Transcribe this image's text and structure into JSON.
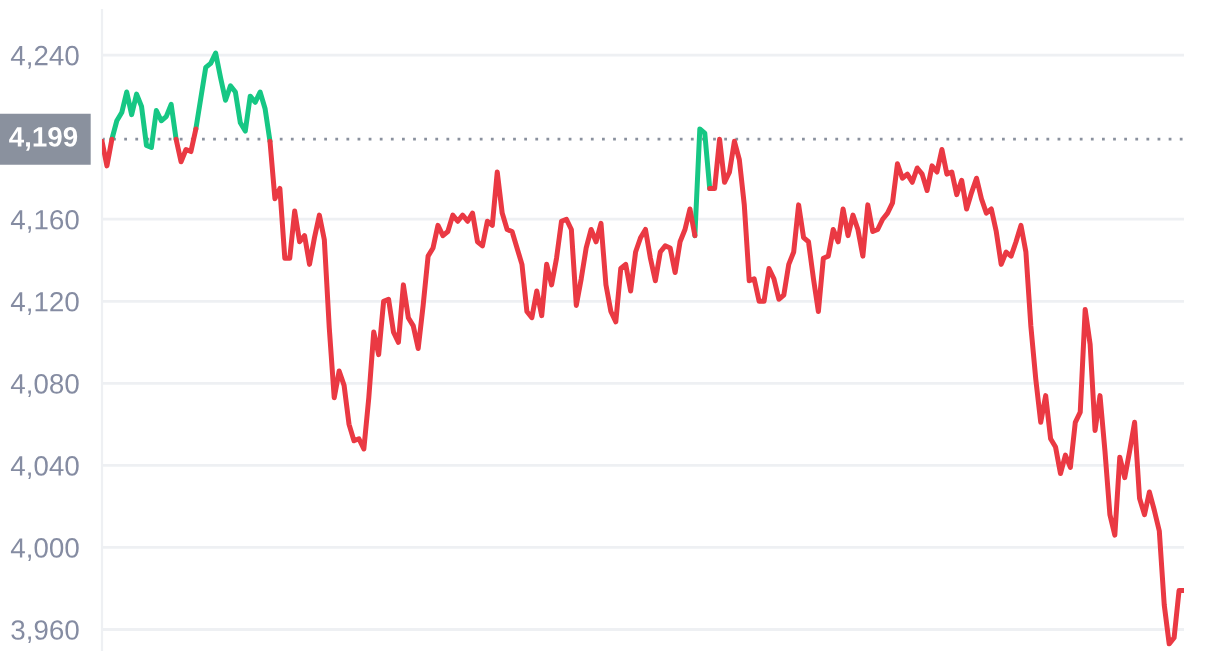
{
  "chart_data": {
    "type": "line",
    "categories": [
      null,
      null,
      null,
      null,
      null,
      null,
      null,
      null,
      null,
      null,
      null,
      null,
      null,
      null,
      null,
      null,
      null,
      null,
      null,
      null,
      null,
      null,
      null,
      null,
      null,
      null,
      null,
      null,
      null,
      null,
      null,
      null,
      null,
      null,
      null,
      null,
      null,
      null,
      null,
      null,
      null,
      null,
      null,
      null,
      null,
      null,
      null,
      null,
      null,
      null,
      null,
      null,
      null,
      null,
      null,
      null,
      null,
      null,
      null,
      null,
      null,
      null,
      null,
      null,
      null,
      null,
      null,
      null,
      null,
      null,
      null,
      null,
      null,
      null,
      null,
      null,
      null,
      null,
      null,
      null,
      null,
      null,
      null,
      null,
      null,
      null,
      null,
      null,
      null,
      null,
      null,
      null,
      null,
      null,
      null,
      null,
      null,
      null,
      null,
      null,
      null,
      null,
      null,
      null,
      null,
      null,
      null,
      null,
      null,
      null,
      null,
      null,
      null,
      null,
      null,
      null,
      null,
      null,
      null,
      null,
      null,
      null,
      null,
      null,
      null,
      null,
      null,
      null,
      null,
      null,
      null,
      null,
      null,
      null,
      null,
      null,
      null,
      null,
      null,
      null,
      null,
      null,
      null,
      null,
      null,
      null,
      null,
      null,
      null,
      null,
      null,
      null,
      null,
      null,
      null,
      null,
      null,
      null,
      null,
      null,
      null,
      null,
      null,
      null,
      null,
      null,
      null,
      null,
      null,
      null,
      null,
      null,
      null,
      null,
      null,
      null,
      null,
      null,
      null,
      null,
      null,
      null,
      null,
      null,
      null,
      null,
      null,
      null,
      null,
      null,
      null,
      null,
      null,
      null,
      null,
      null,
      null,
      null,
      null,
      null,
      null,
      null,
      null,
      null,
      null,
      null,
      null,
      null,
      null,
      null,
      null,
      null,
      null,
      null,
      null,
      null,
      null,
      null,
      null,
      null
    ],
    "series": [
      {
        "color": "#16c784",
        "values": [
          null,
          null,
          4199,
          4208,
          4212,
          4222,
          4211,
          4221,
          4215,
          4196,
          4195,
          4213,
          4208,
          4210,
          4216,
          4199,
          null,
          null,
          null,
          4204,
          4219,
          4234,
          4236,
          4241,
          4229,
          4218,
          4225,
          4222,
          4207,
          4203,
          4220,
          4217,
          4222,
          4214,
          4198,
          null,
          null,
          null,
          null,
          null,
          null,
          null,
          null,
          null,
          null,
          null,
          null,
          null,
          null,
          null,
          null,
          null,
          null,
          null,
          null,
          null,
          null,
          null,
          null,
          null,
          null,
          null,
          null,
          null,
          null,
          null,
          null,
          null,
          null,
          null,
          null,
          null,
          null,
          null,
          null,
          null,
          null,
          null,
          null,
          null,
          null,
          null,
          null,
          null,
          null,
          null,
          null,
          null,
          null,
          null,
          null,
          null,
          null,
          null,
          null,
          null,
          null,
          null,
          null,
          null,
          null,
          null,
          null,
          null,
          null,
          null,
          null,
          null,
          null,
          null,
          null,
          null,
          null,
          null,
          null,
          null,
          null,
          null,
          null,
          null,
          4152,
          4204,
          4202,
          4175,
          null,
          null,
          null,
          null,
          null,
          null,
          null,
          null,
          null,
          null,
          null,
          null,
          null,
          null,
          null,
          null,
          null,
          null,
          null,
          null,
          null,
          null,
          null,
          null,
          null,
          null,
          null,
          null,
          null,
          null,
          null,
          null,
          null,
          null,
          null,
          null,
          null,
          null,
          null,
          null,
          null,
          null,
          null,
          null,
          null,
          null,
          null,
          null,
          null,
          null,
          null,
          null,
          null,
          null,
          null,
          null,
          null,
          null,
          null,
          null,
          null,
          null,
          null,
          null,
          null,
          null,
          null,
          null,
          null,
          null,
          null,
          null,
          null,
          null,
          null,
          null,
          null,
          null,
          null,
          null,
          null,
          null,
          null,
          null,
          null,
          null,
          null,
          null,
          null,
          null,
          null,
          null,
          null,
          null,
          null,
          null
        ]
      },
      {
        "color": "#ea3943",
        "values": [
          4198,
          4186,
          4199,
          null,
          null,
          null,
          null,
          null,
          null,
          null,
          null,
          null,
          null,
          null,
          null,
          4199,
          4188,
          4194,
          4193,
          4204,
          null,
          null,
          null,
          null,
          null,
          null,
          null,
          null,
          null,
          null,
          null,
          null,
          null,
          null,
          4198,
          4170,
          4175,
          4141,
          4141,
          4164,
          4149,
          4152,
          4138,
          4151,
          4162,
          4150,
          4107,
          4073,
          4086,
          4079,
          4060,
          4052,
          4053,
          4048,
          4073,
          4105,
          4094,
          4120,
          4121,
          4105,
          4100,
          4128,
          4112,
          4108,
          4097,
          4118,
          4142,
          4146,
          4157,
          4152,
          4154,
          4162,
          4159,
          4162,
          4159,
          4163,
          4149,
          4147,
          4159,
          4157,
          4183,
          4163,
          4155,
          4154,
          4146,
          4138,
          4115,
          4112,
          4125,
          4113,
          4138,
          4128,
          4141,
          4159,
          4160,
          4155,
          4118,
          4131,
          4146,
          4155,
          4149,
          4158,
          4128,
          4115,
          4110,
          4136,
          4138,
          4125,
          4144,
          4151,
          4155,
          4141,
          4130,
          4144,
          4147,
          4146,
          4134,
          4149,
          4155,
          4165,
          4152,
          null,
          null,
          4175,
          4175,
          4199,
          4178,
          4183,
          4198,
          4189,
          4167,
          4130,
          4131,
          4120,
          4120,
          4136,
          4131,
          4121,
          4123,
          4138,
          4144,
          4167,
          4151,
          4149,
          4131,
          4115,
          4141,
          4142,
          4155,
          4149,
          4165,
          4152,
          4162,
          4155,
          4142,
          4167,
          4154,
          4155,
          4160,
          4163,
          4168,
          4187,
          4180,
          4182,
          4178,
          4185,
          4182,
          4174,
          4186,
          4183,
          4194,
          4182,
          4183,
          4172,
          4179,
          4165,
          4173,
          4180,
          4170,
          4163,
          4165,
          4154,
          4138,
          4144,
          4142,
          4149,
          4157,
          4144,
          4108,
          4082,
          4061,
          4074,
          4053,
          4049,
          4036,
          4045,
          4039,
          4061,
          4066,
          4116,
          4099,
          4057,
          4074,
          4047,
          4016,
          4006,
          4044,
          4034,
          4047,
          4061,
          4024,
          4016,
          4027,
          4018,
          4008,
          3972,
          3953,
          3956,
          3979,
          3979
        ]
      }
    ],
    "ylim": [
      3950,
      4262
    ],
    "yticks": [
      {
        "value": 3960,
        "label": "3,960"
      },
      {
        "value": 4000,
        "label": "4,000"
      },
      {
        "value": 4040,
        "label": "4,040"
      },
      {
        "value": 4080,
        "label": "4,080"
      },
      {
        "value": 4120,
        "label": "4,120"
      },
      {
        "value": 4160,
        "label": "4,160"
      },
      {
        "value": 4240,
        "label": "4,240"
      }
    ],
    "ref_lines": [
      {
        "axis": "y",
        "value": 4199,
        "label": "4,199",
        "color": "#8a919e",
        "line_style": "dotted"
      }
    ],
    "grid": "y",
    "tick_labels": "y"
  }
}
